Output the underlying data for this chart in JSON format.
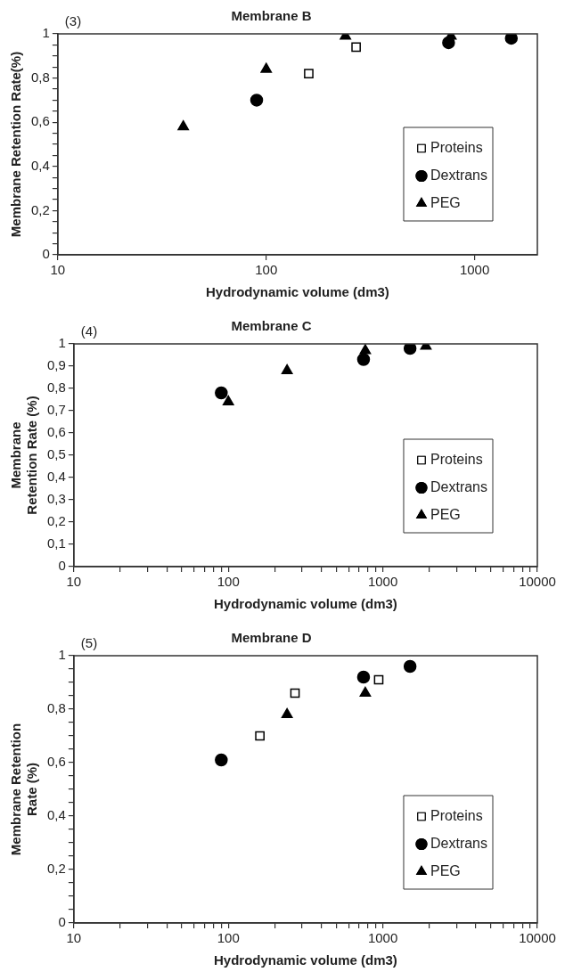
{
  "chart_data": [
    {
      "type": "scatter",
      "title": "Membrane B",
      "annotations": [
        "(3)"
      ],
      "xlabel": "Hydrodynamic volume (dm3)",
      "ylabel": "Membrane Retention Rate(%)",
      "log": "x",
      "xlim": [
        10,
        2000
      ],
      "xticks": [
        {
          "value": 10,
          "label": "10"
        },
        {
          "value": 100,
          "label": "100"
        },
        {
          "value": 1000,
          "label": "1000"
        }
      ],
      "ylim": [
        0,
        1
      ],
      "yticks": [
        {
          "value": 0,
          "label": "0"
        },
        {
          "value": 0.05,
          "label": null
        },
        {
          "value": 0.1,
          "label": null
        },
        {
          "value": 0.15,
          "label": null
        },
        {
          "value": 0.2,
          "label": "0,2"
        },
        {
          "value": 0.25,
          "label": null
        },
        {
          "value": 0.3,
          "label": null
        },
        {
          "value": 0.35,
          "label": null
        },
        {
          "value": 0.4,
          "label": "0,4"
        },
        {
          "value": 0.45,
          "label": null
        },
        {
          "value": 0.5,
          "label": null
        },
        {
          "value": 0.55,
          "label": null
        },
        {
          "value": 0.6,
          "label": "0,6"
        },
        {
          "value": 0.65,
          "label": null
        },
        {
          "value": 0.7,
          "label": null
        },
        {
          "value": 0.75,
          "label": null
        },
        {
          "value": 0.8,
          "label": "0,8"
        },
        {
          "value": 0.85,
          "label": null
        },
        {
          "value": 0.9,
          "label": null
        },
        {
          "value": 0.95,
          "label": null
        },
        {
          "value": 1,
          "label": "1"
        }
      ],
      "grid": false,
      "legend": "bottom right",
      "series": [
        {
          "name": "Proteins",
          "color": "#000000",
          "marker": "square",
          "x": [
            160,
            270
          ],
          "values": [
            0.82,
            0.94
          ]
        },
        {
          "name": "Dextrans",
          "color": "#000000",
          "marker": "circle",
          "x": [
            90,
            750,
            1500
          ],
          "values": [
            0.7,
            0.96,
            0.98
          ]
        },
        {
          "name": "PEG",
          "color": "#000000",
          "marker": "triangle",
          "x": [
            40,
            100,
            240,
            770
          ],
          "values": [
            0.58,
            0.84,
            0.99,
            0.99
          ]
        }
      ]
    },
    {
      "type": "scatter",
      "title": "Membrane C",
      "annotations": [
        "(4)"
      ],
      "xlabel": "Hydrodynamic volume (dm3)",
      "ylabel": "Membrane\nRetention Rate (%)",
      "log": "x",
      "xlim": [
        10,
        10000
      ],
      "xticks": [
        {
          "value": 10,
          "label": "10"
        },
        {
          "value": 20,
          "label": null
        },
        {
          "value": 30,
          "label": null
        },
        {
          "value": 40,
          "label": null
        },
        {
          "value": 50,
          "label": null
        },
        {
          "value": 60,
          "label": null
        },
        {
          "value": 70,
          "label": null
        },
        {
          "value": 80,
          "label": null
        },
        {
          "value": 90,
          "label": null
        },
        {
          "value": 100,
          "label": "100"
        },
        {
          "value": 200,
          "label": null
        },
        {
          "value": 300,
          "label": null
        },
        {
          "value": 400,
          "label": null
        },
        {
          "value": 500,
          "label": null
        },
        {
          "value": 600,
          "label": null
        },
        {
          "value": 700,
          "label": null
        },
        {
          "value": 800,
          "label": null
        },
        {
          "value": 900,
          "label": null
        },
        {
          "value": 1000,
          "label": "1000"
        },
        {
          "value": 2000,
          "label": null
        },
        {
          "value": 3000,
          "label": null
        },
        {
          "value": 4000,
          "label": null
        },
        {
          "value": 5000,
          "label": null
        },
        {
          "value": 6000,
          "label": null
        },
        {
          "value": 7000,
          "label": null
        },
        {
          "value": 8000,
          "label": null
        },
        {
          "value": 9000,
          "label": null
        },
        {
          "value": 10000,
          "label": "10000"
        }
      ],
      "ylim": [
        0,
        1
      ],
      "yticks": [
        {
          "value": 0,
          "label": "0"
        },
        {
          "value": 0.1,
          "label": "0,1"
        },
        {
          "value": 0.2,
          "label": "0,2"
        },
        {
          "value": 0.3,
          "label": "0,3"
        },
        {
          "value": 0.4,
          "label": "0,4"
        },
        {
          "value": 0.5,
          "label": "0,5"
        },
        {
          "value": 0.6,
          "label": "0,6"
        },
        {
          "value": 0.7,
          "label": "0,7"
        },
        {
          "value": 0.8,
          "label": "0,8"
        },
        {
          "value": 0.9,
          "label": "0,9"
        },
        {
          "value": 1,
          "label": "1"
        }
      ],
      "grid": false,
      "legend": "bottom right",
      "series": [
        {
          "name": "Proteins",
          "color": "#000000",
          "marker": "square"
        },
        {
          "name": "Dextrans",
          "color": "#000000",
          "marker": "circle",
          "x": [
            90,
            750,
            1500
          ],
          "values": [
            0.78,
            0.93,
            0.98
          ]
        },
        {
          "name": "PEG",
          "color": "#000000",
          "marker": "triangle",
          "x": [
            100,
            240,
            770,
            1900
          ],
          "values": [
            0.74,
            0.88,
            0.97,
            0.99
          ]
        }
      ]
    },
    {
      "type": "scatter",
      "title": "Membrane D",
      "annotations": [
        "(5)"
      ],
      "xlabel": "Hydrodynamic volume (dm3)",
      "ylabel": "Membrane Retention\nRate (%)",
      "log": "x",
      "xlim": [
        10,
        10000
      ],
      "xticks": [
        {
          "value": 10,
          "label": "10"
        },
        {
          "value": 20,
          "label": null
        },
        {
          "value": 30,
          "label": null
        },
        {
          "value": 40,
          "label": null
        },
        {
          "value": 50,
          "label": null
        },
        {
          "value": 60,
          "label": null
        },
        {
          "value": 70,
          "label": null
        },
        {
          "value": 80,
          "label": null
        },
        {
          "value": 90,
          "label": null
        },
        {
          "value": 100,
          "label": "100"
        },
        {
          "value": 200,
          "label": null
        },
        {
          "value": 300,
          "label": null
        },
        {
          "value": 400,
          "label": null
        },
        {
          "value": 500,
          "label": null
        },
        {
          "value": 600,
          "label": null
        },
        {
          "value": 700,
          "label": null
        },
        {
          "value": 800,
          "label": null
        },
        {
          "value": 900,
          "label": null
        },
        {
          "value": 1000,
          "label": "1000"
        },
        {
          "value": 2000,
          "label": null
        },
        {
          "value": 3000,
          "label": null
        },
        {
          "value": 4000,
          "label": null
        },
        {
          "value": 5000,
          "label": null
        },
        {
          "value": 6000,
          "label": null
        },
        {
          "value": 7000,
          "label": null
        },
        {
          "value": 8000,
          "label": null
        },
        {
          "value": 9000,
          "label": null
        },
        {
          "value": 10000,
          "label": "10000"
        }
      ],
      "ylim": [
        0,
        1
      ],
      "yticks": [
        {
          "value": 0,
          "label": "0"
        },
        {
          "value": 0.05,
          "label": null
        },
        {
          "value": 0.1,
          "label": null
        },
        {
          "value": 0.15,
          "label": null
        },
        {
          "value": 0.2,
          "label": "0,2"
        },
        {
          "value": 0.25,
          "label": null
        },
        {
          "value": 0.3,
          "label": null
        },
        {
          "value": 0.35,
          "label": null
        },
        {
          "value": 0.4,
          "label": "0,4"
        },
        {
          "value": 0.45,
          "label": null
        },
        {
          "value": 0.5,
          "label": null
        },
        {
          "value": 0.55,
          "label": null
        },
        {
          "value": 0.6,
          "label": "0,6"
        },
        {
          "value": 0.65,
          "label": null
        },
        {
          "value": 0.7,
          "label": null
        },
        {
          "value": 0.75,
          "label": null
        },
        {
          "value": 0.8,
          "label": "0,8"
        },
        {
          "value": 0.85,
          "label": null
        },
        {
          "value": 0.9,
          "label": null
        },
        {
          "value": 0.95,
          "label": null
        },
        {
          "value": 1,
          "label": "1"
        }
      ],
      "grid": false,
      "legend": "bottom right",
      "series": [
        {
          "name": "Proteins",
          "color": "#000000",
          "marker": "square",
          "x": [
            160,
            270,
            940
          ],
          "values": [
            0.7,
            0.86,
            0.91
          ]
        },
        {
          "name": "Dextrans",
          "color": "#000000",
          "marker": "circle",
          "x": [
            90,
            750,
            1500
          ],
          "values": [
            0.61,
            0.92,
            0.96
          ]
        },
        {
          "name": "PEG",
          "color": "#000000",
          "marker": "triangle",
          "x": [
            240,
            770
          ],
          "values": [
            0.78,
            0.86
          ]
        }
      ]
    }
  ]
}
